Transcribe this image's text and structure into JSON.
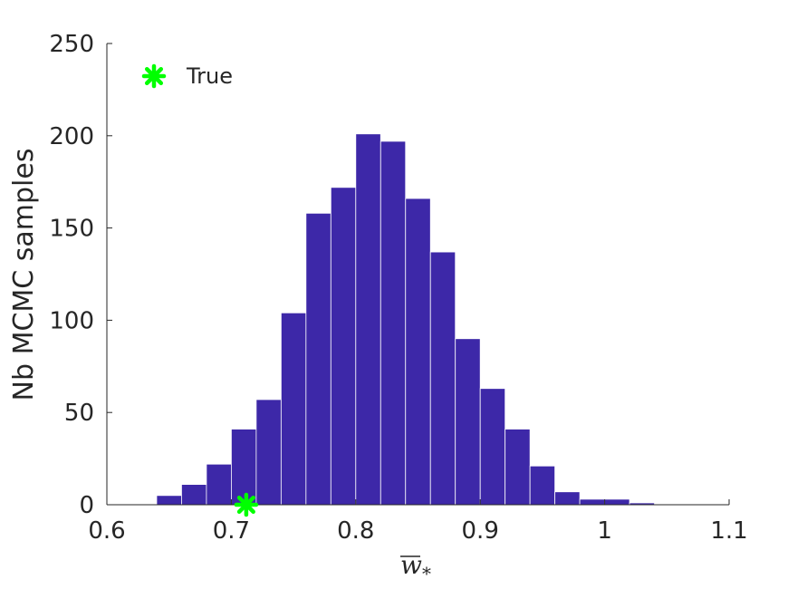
{
  "chart_data": {
    "type": "bar",
    "bin_edges": [
      0.6,
      0.62,
      0.64,
      0.66,
      0.68,
      0.7,
      0.72,
      0.74,
      0.76,
      0.78,
      0.8,
      0.82,
      0.84,
      0.86,
      0.88,
      0.9,
      0.92,
      0.94,
      0.96,
      0.98,
      1.0,
      1.02,
      1.04,
      1.06,
      1.08,
      1.1
    ],
    "values": [
      0,
      0,
      5,
      11,
      22,
      41,
      57,
      104,
      158,
      172,
      201,
      197,
      166,
      137,
      90,
      63,
      41,
      21,
      7,
      3,
      3,
      1,
      0,
      0,
      0
    ],
    "xlim": [
      0.6,
      1.1
    ],
    "ylim": [
      0,
      250
    ],
    "xticks": [
      0.6,
      0.7,
      0.8,
      0.9,
      1,
      1.1
    ],
    "xtick_labels": [
      "0.6",
      "0.7",
      "0.8",
      "0.9",
      "1",
      "1.1"
    ],
    "yticks": [
      0,
      50,
      100,
      150,
      200,
      250
    ],
    "ytick_labels": [
      "0",
      "50",
      "100",
      "150",
      "200",
      "250"
    ],
    "ylabel": "Nb MCMC samples",
    "xlabel_symbol": "w",
    "xlabel_subscript": "*",
    "bar_color": "#3d28a8",
    "edge_color": "#ffffff",
    "grid": false,
    "legend_position": "top-left",
    "true_marker": {
      "x": 0.712,
      "y": 0,
      "label": "True",
      "color": "#00ff00",
      "icon": "asterisk-marker-icon"
    }
  }
}
